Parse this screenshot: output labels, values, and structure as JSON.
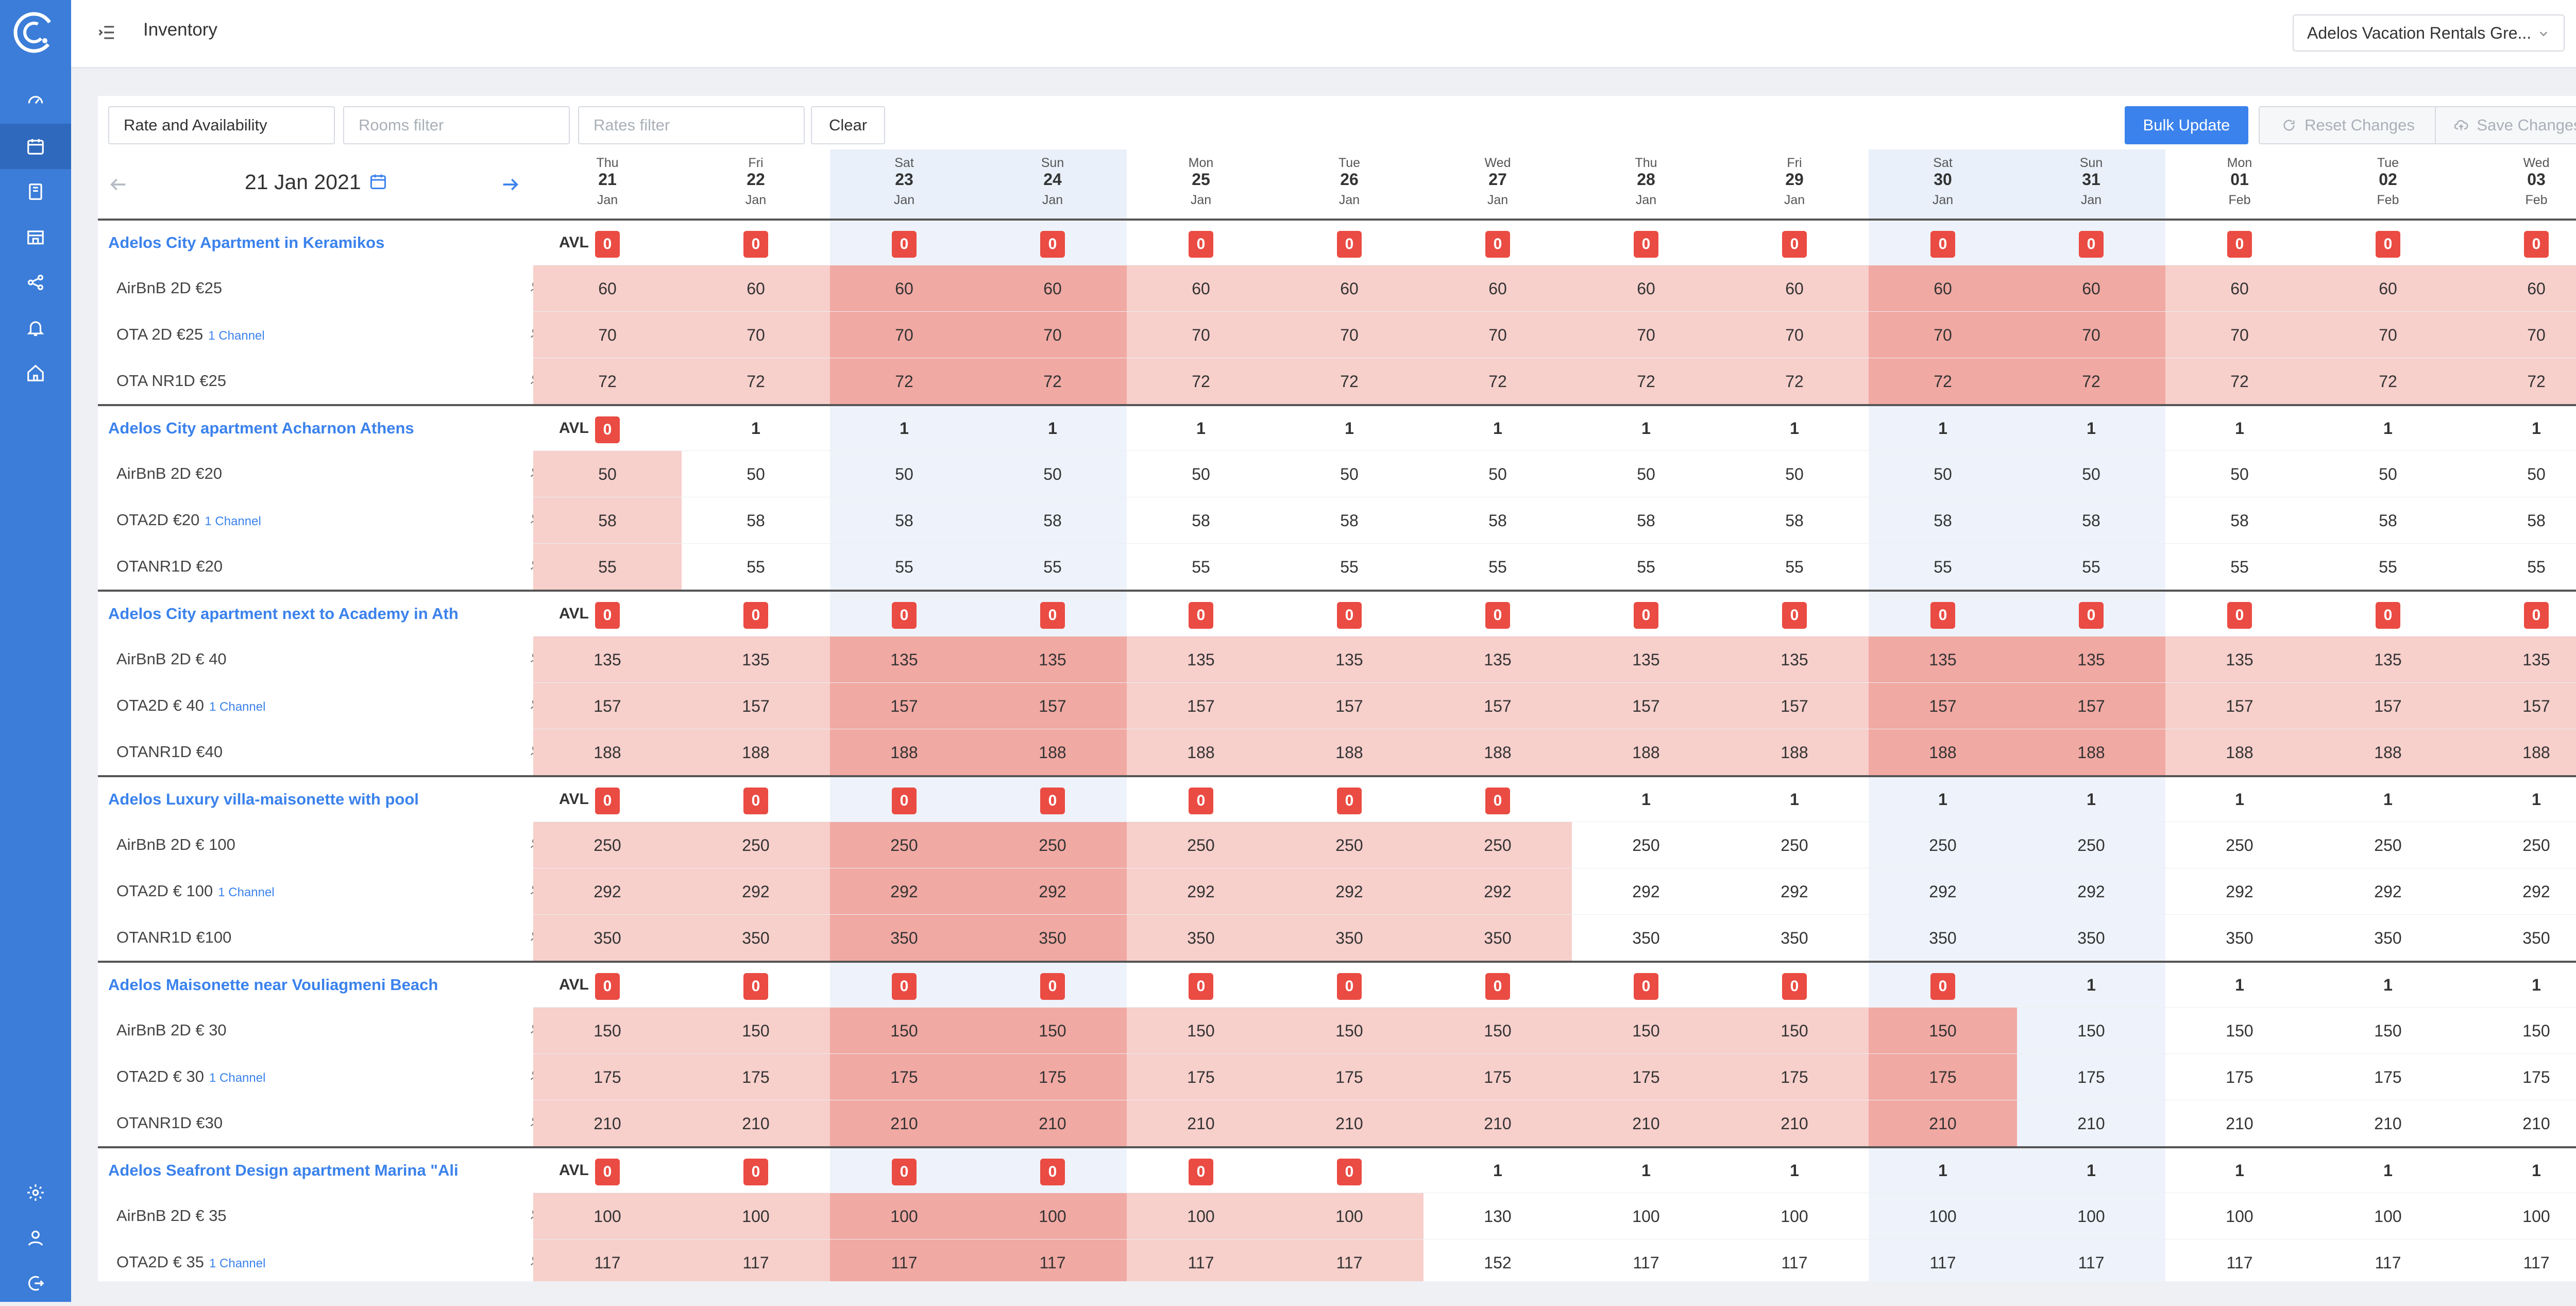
{
  "app": {
    "logo": "app-logo",
    "title": "Inventory"
  },
  "sidebar": {
    "items": [
      {
        "name": "dashboard",
        "icon": "gauge-icon"
      },
      {
        "name": "inventory",
        "icon": "calendar-icon",
        "active": true
      },
      {
        "name": "reservations",
        "icon": "book-icon"
      },
      {
        "name": "properties",
        "icon": "building-icon"
      },
      {
        "name": "channels",
        "icon": "share-icon"
      },
      {
        "name": "notifications",
        "icon": "bell-icon"
      },
      {
        "name": "home",
        "icon": "home-icon"
      }
    ],
    "bottom_items": [
      {
        "name": "settings",
        "icon": "gear-icon"
      },
      {
        "name": "account",
        "icon": "user-icon"
      },
      {
        "name": "logout",
        "icon": "logout-icon"
      }
    ]
  },
  "header": {
    "property_select": "Adelos Vacation Rentals Gre...",
    "help_icon": "help-icon"
  },
  "toolbar": {
    "view_select": "Rate and Availability",
    "rooms_filter_placeholder": "Rooms filter",
    "rates_filter_placeholder": "Rates filter",
    "clear_label": "Clear",
    "bulk_update_label": "Bulk Update",
    "reset_label": "Reset Changes",
    "save_label": "Save Changes"
  },
  "date_nav": {
    "current": "21 Jan 2021"
  },
  "days": [
    {
      "dow": "Thu",
      "num": "21",
      "mon": "Jan",
      "weekend": false
    },
    {
      "dow": "Fri",
      "num": "22",
      "mon": "Jan",
      "weekend": false
    },
    {
      "dow": "Sat",
      "num": "23",
      "mon": "Jan",
      "weekend": true
    },
    {
      "dow": "Sun",
      "num": "24",
      "mon": "Jan",
      "weekend": true
    },
    {
      "dow": "Mon",
      "num": "25",
      "mon": "Jan",
      "weekend": false
    },
    {
      "dow": "Tue",
      "num": "26",
      "mon": "Jan",
      "weekend": false
    },
    {
      "dow": "Wed",
      "num": "27",
      "mon": "Jan",
      "weekend": false
    },
    {
      "dow": "Thu",
      "num": "28",
      "mon": "Jan",
      "weekend": false
    },
    {
      "dow": "Fri",
      "num": "29",
      "mon": "Jan",
      "weekend": false
    },
    {
      "dow": "Sat",
      "num": "30",
      "mon": "Jan",
      "weekend": true
    },
    {
      "dow": "Sun",
      "num": "31",
      "mon": "Jan",
      "weekend": true
    },
    {
      "dow": "Mon",
      "num": "01",
      "mon": "Feb",
      "weekend": false
    },
    {
      "dow": "Tue",
      "num": "02",
      "mon": "Feb",
      "weekend": false
    },
    {
      "dow": "Wed",
      "num": "03",
      "mon": "Feb",
      "weekend": false
    }
  ],
  "rooms": [
    {
      "name": "Adelos City Apartment in Keramikos",
      "kind": "AVL",
      "avl": [
        "0",
        "0",
        "0",
        "0",
        "0",
        "0",
        "0",
        "0",
        "0",
        "0",
        "0",
        "0",
        "0",
        "0"
      ],
      "rates": [
        {
          "name": "AirBnB 2D €25",
          "channel": "",
          "occ": "4",
          "kind": "RATE",
          "values": [
            "60",
            "60",
            "60",
            "60",
            "60",
            "60",
            "60",
            "60",
            "60",
            "60",
            "60",
            "60",
            "60",
            "60"
          ]
        },
        {
          "name": "OTA 2D €25",
          "channel": "1 Channel",
          "occ": "4",
          "kind": "RATE",
          "values": [
            "70",
            "70",
            "70",
            "70",
            "70",
            "70",
            "70",
            "70",
            "70",
            "70",
            "70",
            "70",
            "70",
            "70"
          ]
        },
        {
          "name": "OTA NR1D €25",
          "channel": "",
          "occ": "4",
          "kind": "RATE",
          "values": [
            "72",
            "72",
            "72",
            "72",
            "72",
            "72",
            "72",
            "72",
            "72",
            "72",
            "72",
            "72",
            "72",
            "72"
          ]
        }
      ]
    },
    {
      "name": "Adelos City apartment Acharnon Athens",
      "kind": "AVL",
      "avl": [
        "0",
        "1",
        "1",
        "1",
        "1",
        "1",
        "1",
        "1",
        "1",
        "1",
        "1",
        "1",
        "1",
        "1"
      ],
      "rates": [
        {
          "name": "AirBnB 2D €20",
          "channel": "",
          "occ": "2",
          "kind": "RATE",
          "values": [
            "50",
            "50",
            "50",
            "50",
            "50",
            "50",
            "50",
            "50",
            "50",
            "50",
            "50",
            "50",
            "50",
            "50"
          ]
        },
        {
          "name": "OTA2D €20",
          "channel": "1 Channel",
          "occ": "2",
          "kind": "RATE",
          "values": [
            "58",
            "58",
            "58",
            "58",
            "58",
            "58",
            "58",
            "58",
            "58",
            "58",
            "58",
            "58",
            "58",
            "58"
          ]
        },
        {
          "name": "OTANR1D €20",
          "channel": "",
          "occ": "2",
          "kind": "RATE",
          "values": [
            "55",
            "55",
            "55",
            "55",
            "55",
            "55",
            "55",
            "55",
            "55",
            "55",
            "55",
            "55",
            "55",
            "55"
          ]
        }
      ]
    },
    {
      "name": "Adelos City apartment next to Academy in Ath",
      "kind": "AVL",
      "avl": [
        "0",
        "0",
        "0",
        "0",
        "0",
        "0",
        "0",
        "0",
        "0",
        "0",
        "0",
        "0",
        "0",
        "0"
      ],
      "rates": [
        {
          "name": "AirBnB 2D € 40",
          "channel": "",
          "occ": "5",
          "kind": "RATE",
          "values": [
            "135",
            "135",
            "135",
            "135",
            "135",
            "135",
            "135",
            "135",
            "135",
            "135",
            "135",
            "135",
            "135",
            "135"
          ]
        },
        {
          "name": "OTA2D € 40",
          "channel": "1 Channel",
          "occ": "5",
          "kind": "RATE",
          "values": [
            "157",
            "157",
            "157",
            "157",
            "157",
            "157",
            "157",
            "157",
            "157",
            "157",
            "157",
            "157",
            "157",
            "157"
          ]
        },
        {
          "name": "OTANR1D €40",
          "channel": "",
          "occ": "5",
          "kind": "RATE",
          "values": [
            "188",
            "188",
            "188",
            "188",
            "188",
            "188",
            "188",
            "188",
            "188",
            "188",
            "188",
            "188",
            "188",
            "188"
          ]
        }
      ]
    },
    {
      "name": "Adelos Luxury villa-maisonette with pool",
      "kind": "AVL",
      "avl": [
        "0",
        "0",
        "0",
        "0",
        "0",
        "0",
        "0",
        "1",
        "1",
        "1",
        "1",
        "1",
        "1",
        "1"
      ],
      "rates": [
        {
          "name": "AirBnB 2D € 100",
          "channel": "",
          "occ": "8",
          "kind": "RATE",
          "values": [
            "250",
            "250",
            "250",
            "250",
            "250",
            "250",
            "250",
            "250",
            "250",
            "250",
            "250",
            "250",
            "250",
            "250"
          ]
        },
        {
          "name": "OTA2D € 100",
          "channel": "1 Channel",
          "occ": "8",
          "kind": "RATE",
          "values": [
            "292",
            "292",
            "292",
            "292",
            "292",
            "292",
            "292",
            "292",
            "292",
            "292",
            "292",
            "292",
            "292",
            "292"
          ]
        },
        {
          "name": "OTANR1D €100",
          "channel": "",
          "occ": "8",
          "kind": "RATE",
          "values": [
            "350",
            "350",
            "350",
            "350",
            "350",
            "350",
            "350",
            "350",
            "350",
            "350",
            "350",
            "350",
            "350",
            "350"
          ]
        }
      ]
    },
    {
      "name": "Adelos Maisonette near Vouliagmeni Beach",
      "kind": "AVL",
      "avl": [
        "0",
        "0",
        "0",
        "0",
        "0",
        "0",
        "0",
        "0",
        "0",
        "0",
        "1",
        "1",
        "1",
        "1"
      ],
      "rates": [
        {
          "name": "AirBnB 2D € 30",
          "channel": "",
          "occ": "2",
          "kind": "RATE",
          "values": [
            "150",
            "150",
            "150",
            "150",
            "150",
            "150",
            "150",
            "150",
            "150",
            "150",
            "150",
            "150",
            "150",
            "150"
          ]
        },
        {
          "name": "OTA2D € 30",
          "channel": "1 Channel",
          "occ": "2",
          "kind": "RATE",
          "values": [
            "175",
            "175",
            "175",
            "175",
            "175",
            "175",
            "175",
            "175",
            "175",
            "175",
            "175",
            "175",
            "175",
            "175"
          ]
        },
        {
          "name": "OTANR1D €30",
          "channel": "",
          "occ": "3",
          "kind": "RATE",
          "values": [
            "210",
            "210",
            "210",
            "210",
            "210",
            "210",
            "210",
            "210",
            "210",
            "210",
            "210",
            "210",
            "210",
            "210"
          ]
        }
      ]
    },
    {
      "name": "Adelos Seafront Design apartment Marina \"Ali",
      "kind": "AVL",
      "avl": [
        "0",
        "0",
        "0",
        "0",
        "0",
        "0",
        "1",
        "1",
        "1",
        "1",
        "1",
        "1",
        "1",
        "1"
      ],
      "rates": [
        {
          "name": "AirBnB 2D € 35",
          "channel": "",
          "occ": "4",
          "kind": "RATE",
          "values": [
            "100",
            "100",
            "100",
            "100",
            "100",
            "100",
            "130",
            "100",
            "100",
            "100",
            "100",
            "100",
            "100",
            "100"
          ]
        },
        {
          "name": "OTA2D € 35",
          "channel": "1 Channel",
          "occ": "4",
          "kind": "RATE",
          "values": [
            "117",
            "117",
            "117",
            "117",
            "117",
            "117",
            "152",
            "117",
            "117",
            "117",
            "117",
            "117",
            "117",
            "117"
          ]
        }
      ]
    }
  ],
  "colors": {
    "sidebar": "#3b7dd8",
    "accent": "#3b82ec",
    "soldout_badge": "#ea4b43",
    "soldout_cell": "#f7cfcb",
    "soldout_weekend_cell": "#f1a9a3",
    "weekend_cell": "#eef3fb"
  }
}
